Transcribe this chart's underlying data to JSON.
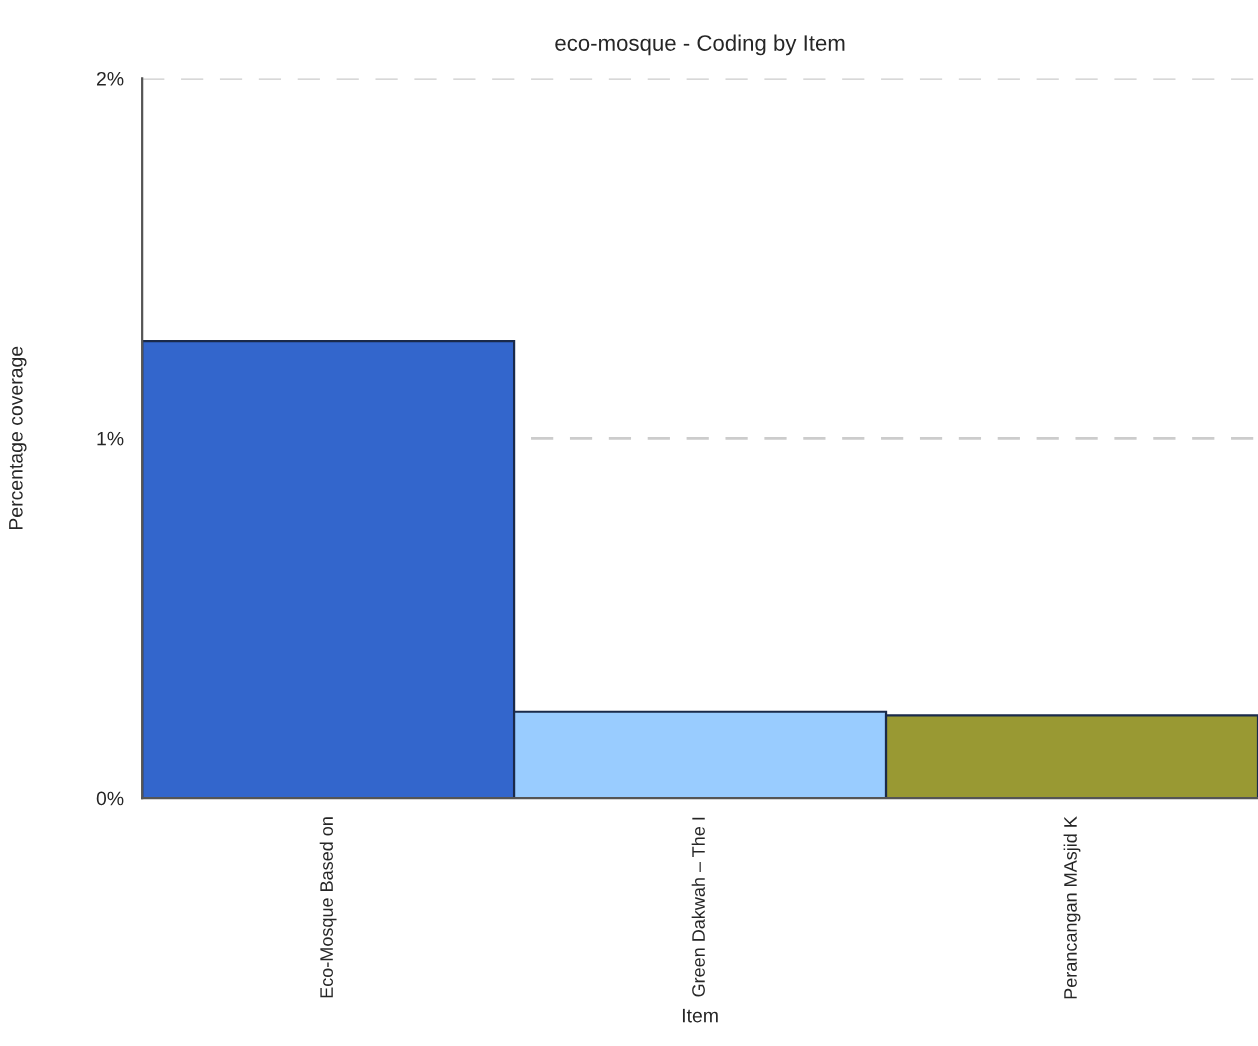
{
  "chart_data": {
    "type": "bar",
    "title": "eco-mosque - Coding by Item",
    "xlabel": "Item",
    "ylabel": "Percentage coverage",
    "categories": [
      "Eco-Mosque Based on",
      "Green Dakwah – The I",
      "Perancangan MAsjid K"
    ],
    "values": [
      1.27,
      0.24,
      0.23
    ],
    "colors": [
      "#3366cc",
      "#99ccff",
      "#999933"
    ],
    "ylim": [
      0,
      2
    ],
    "yticks": [
      {
        "value": 0,
        "label": "0%"
      },
      {
        "value": 1,
        "label": "1%"
      },
      {
        "value": 2,
        "label": "2%"
      }
    ],
    "grid": "y",
    "line_style": "dashed",
    "legend": false
  }
}
